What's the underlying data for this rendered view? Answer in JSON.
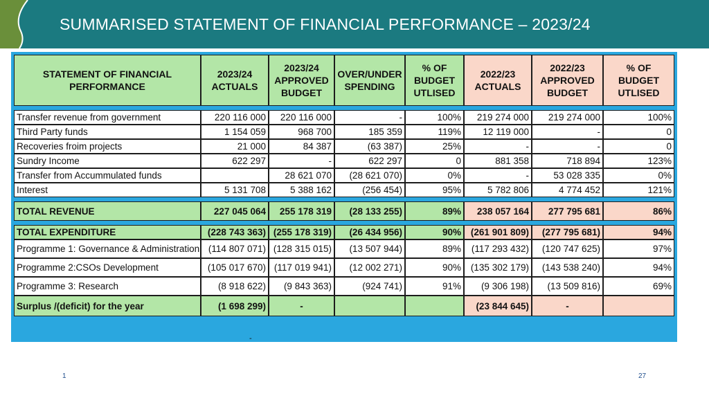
{
  "title": "SUMMARISED STATEMENT OF FINANCIAL PERFORMANCE – 2023/24",
  "colors": {
    "header": "#1b7a80",
    "border_blue": "#2aa7df",
    "green": "#b3e6a7",
    "pink": "#fad7c9"
  },
  "table": {
    "headers": [
      "STATEMENT OF FINANCIAL PERFORMANCE",
      "2023/24 ACTUALS",
      "2023/24 APPROVED BUDGET",
      "OVER/UNDER SPENDING",
      "% OF BUDGET UTLISED",
      "2022/23 ACTUALS",
      "2022/23 APPROVED BUDGET",
      "% OF BUDGET UTLISED"
    ],
    "revenue_rows": [
      [
        "Transfer revenue from government",
        "220 116 000",
        "220 116 000",
        "-",
        "100%",
        "219 274 000",
        "219 274 000",
        "100%"
      ],
      [
        "Third Party funds",
        "1 154 059",
        "968 700",
        "185 359",
        "119%",
        "12 119 000",
        "-",
        "0"
      ],
      [
        "Recoveries froim projects",
        "21 000",
        "84 387",
        "(63 387)",
        "25%",
        "-",
        "-",
        "0"
      ],
      [
        "Sundry Income",
        "622 297",
        "-",
        "622 297",
        "0",
        "881 358",
        "718 894",
        "123%"
      ],
      [
        "Transfer from Accummulated funds",
        "",
        "28 621 070",
        "(28 621 070)",
        "0%",
        "-",
        "53 028 335",
        "0%"
      ],
      [
        "Interest",
        "5 131 708",
        "5 388 162",
        "(256 454)",
        "95%",
        "5 782 806",
        "4 774 452",
        "121%"
      ]
    ],
    "total_revenue": [
      "TOTAL REVENUE",
      "227 045 064",
      "255 178 319",
      "(28 133 255)",
      "89%",
      "238 057 164",
      "277 795 681",
      "86%"
    ],
    "total_expenditure": [
      "TOTAL EXPENDITURE",
      "(228 743 363)",
      "(255 178 319)",
      "(26 434 956)",
      "90%",
      "(261 901 809)",
      "(277 795 681)",
      "94%"
    ],
    "programme_rows": [
      [
        "Programme 1: Governance & Administration",
        "(114 807 071)",
        "(128 315 015)",
        "(13 507 944)",
        "89%",
        "(117 293 432)",
        "(120 747 625)",
        "97%"
      ],
      [
        "Programme 2:CSOs Development",
        "(105 017 670)",
        "(117 019 941)",
        "(12 002 271)",
        "90%",
        "(135 302 179)",
        "(143 538 240)",
        "94%"
      ],
      [
        "Programme 3: Research",
        "(8 918 622)",
        "(9 843 363)",
        "(924 741)",
        "91%",
        "(9 306 198)",
        "(13 509 816)",
        "69%"
      ]
    ],
    "surplus": [
      "Surplus /(deficit) for the year",
      "(1 698 299)",
      "-",
      "",
      "",
      "(23 844 645)",
      "-",
      ""
    ],
    "below_dash": "-"
  },
  "footer": {
    "left": "1",
    "right": "27"
  }
}
